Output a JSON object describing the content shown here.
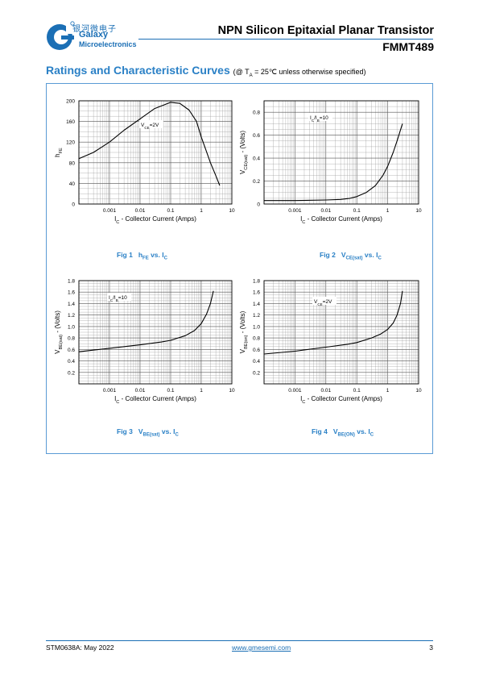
{
  "header": {
    "company_cn": "银河微电子",
    "company_en_1": "Galaxy",
    "company_en_2": "Microelectronics",
    "title": "NPN Silicon Epitaxial Planar Transistor",
    "part_number": "FMMT489"
  },
  "section": {
    "title": "Ratings and Characteristic Curves",
    "condition_prefix": "(@ T",
    "condition_sub": "A",
    "condition_suffix": " = 25℃ unless otherwise specified)"
  },
  "footer": {
    "doc_id": "STM0638A: May 2022",
    "website": "www.gmesemi.com",
    "page": "3"
  },
  "colors": {
    "brand_blue": "#1b6fb5",
    "caption_blue": "#2a80c6",
    "panel_border": "#5a9bd5"
  },
  "chart_data": [
    {
      "type": "line",
      "caption_fig": "Fig 1",
      "caption": [
        [
          "h",
          ""
        ],
        [
          "FE",
          "sub"
        ],
        [
          " vs. I",
          ""
        ],
        [
          "C",
          "sub"
        ]
      ],
      "xscale": "log",
      "xlim": [
        0.0001,
        10
      ],
      "x_ticks": [
        "0.001",
        "0.01",
        "0.1",
        "1",
        "10"
      ],
      "xlabel": [
        [
          "I",
          ""
        ],
        [
          "C",
          "sub"
        ],
        [
          " - Collector Current (Amps)",
          ""
        ]
      ],
      "ylabel": [
        [
          "h",
          ""
        ],
        [
          "FE",
          "sub"
        ]
      ],
      "ylim": [
        0,
        200
      ],
      "y_ticks": [
        "200",
        "160",
        "120",
        "80",
        "40",
        "0"
      ],
      "annotation": [
        [
          "V",
          ""
        ],
        [
          "CE",
          "sub"
        ],
        [
          "=2V",
          ""
        ]
      ],
      "series": [
        {
          "x": [
            0.0001,
            0.0003,
            0.001,
            0.003,
            0.01,
            0.03,
            0.1,
            0.2,
            0.4,
            0.7,
            1,
            2,
            3,
            4
          ],
          "y": [
            88,
            100,
            120,
            143,
            165,
            185,
            197,
            195,
            182,
            160,
            130,
            80,
            55,
            36
          ]
        }
      ]
    },
    {
      "type": "line",
      "caption_fig": "Fig 2",
      "caption": [
        [
          "V",
          ""
        ],
        [
          "CE(sat)",
          "sub"
        ],
        [
          " vs. I",
          ""
        ],
        [
          "C",
          "sub"
        ]
      ],
      "xscale": "log",
      "xlim": [
        0.0001,
        10
      ],
      "x_ticks": [
        "0.001",
        "0.01",
        "0.1",
        "1",
        "10"
      ],
      "xlabel": [
        [
          "I",
          ""
        ],
        [
          "C",
          "sub"
        ],
        [
          " - Collector Current (Amps)",
          ""
        ]
      ],
      "ylabel": [
        [
          "V",
          ""
        ],
        [
          "CE(sat)",
          "sub"
        ],
        [
          " - (Volts)",
          ""
        ]
      ],
      "ylim": [
        0,
        0.9
      ],
      "y_ticks": [
        "0.8",
        "0.6",
        "0.4",
        "0.2",
        "0"
      ],
      "annotation": [
        [
          "I",
          ""
        ],
        [
          "C",
          "sub"
        ],
        [
          "/I",
          ""
        ],
        [
          "B",
          "sub"
        ],
        [
          "=10",
          ""
        ]
      ],
      "series": [
        {
          "x": [
            0.0001,
            0.001,
            0.01,
            0.03,
            0.06,
            0.1,
            0.2,
            0.4,
            0.7,
            1,
            1.5,
            2,
            3
          ],
          "y": [
            0.03,
            0.03,
            0.035,
            0.04,
            0.05,
            0.065,
            0.1,
            0.16,
            0.25,
            0.33,
            0.45,
            0.55,
            0.7
          ]
        }
      ]
    },
    {
      "type": "line",
      "caption_fig": "Fig 3",
      "caption": [
        [
          "V",
          ""
        ],
        [
          "BE(sat)",
          "sub"
        ],
        [
          " vs. I",
          ""
        ],
        [
          "C",
          "sub"
        ]
      ],
      "xscale": "log",
      "xlim": [
        0.0001,
        10
      ],
      "x_ticks": [
        "0.001",
        "0.01",
        "0.1",
        "1",
        "10"
      ],
      "xlabel": [
        [
          "I",
          ""
        ],
        [
          "C",
          "sub"
        ],
        [
          " - Collector Current (Amps)",
          ""
        ]
      ],
      "ylabel": [
        [
          "V",
          ""
        ],
        [
          "BE(sat)",
          "sub"
        ],
        [
          " - (Volts)",
          ""
        ]
      ],
      "ylim": [
        0,
        1.8
      ],
      "y_ticks": [
        "1.8",
        "1.6",
        "1.4",
        "1.2",
        "1.0",
        "0.8",
        "0.6",
        "0.4",
        "0.2"
      ],
      "annotation": [
        [
          "I",
          ""
        ],
        [
          "C",
          "sub"
        ],
        [
          "/I",
          ""
        ],
        [
          "B",
          "sub"
        ],
        [
          "=10",
          ""
        ]
      ],
      "series": [
        {
          "x": [
            0.0001,
            0.001,
            0.01,
            0.05,
            0.1,
            0.3,
            0.6,
            1,
            1.5,
            2,
            2.5
          ],
          "y": [
            0.56,
            0.62,
            0.68,
            0.73,
            0.76,
            0.84,
            0.93,
            1.05,
            1.22,
            1.4,
            1.62
          ]
        }
      ]
    },
    {
      "type": "line",
      "caption_fig": "Fig 4",
      "caption": [
        [
          "V",
          ""
        ],
        [
          "BE(ON)",
          "sub"
        ],
        [
          " vs. I",
          ""
        ],
        [
          "C",
          "sub"
        ]
      ],
      "xscale": "log",
      "xlim": [
        0.0001,
        10
      ],
      "x_ticks": [
        "0.001",
        "0.01",
        "0.1",
        "1",
        "10"
      ],
      "xlabel": [
        [
          "I",
          ""
        ],
        [
          "C",
          "sub"
        ],
        [
          " - Collector Current (Amps)",
          ""
        ]
      ],
      "ylabel": [
        [
          "V",
          ""
        ],
        [
          "BE(on)",
          "sub"
        ],
        [
          " - (Volts)",
          ""
        ]
      ],
      "ylim": [
        0,
        1.8
      ],
      "y_ticks": [
        "1.8",
        "1.6",
        "1.4",
        "1.2",
        "1.0",
        "0.8",
        "0.6",
        "0.4",
        "0.2"
      ],
      "annotation": [
        [
          "V",
          ""
        ],
        [
          "CE",
          "sub"
        ],
        [
          "=2V",
          ""
        ]
      ],
      "series": [
        {
          "x": [
            0.0001,
            0.001,
            0.01,
            0.05,
            0.1,
            0.3,
            0.6,
            1,
            1.5,
            2,
            2.6,
            3
          ],
          "y": [
            0.52,
            0.57,
            0.64,
            0.69,
            0.72,
            0.8,
            0.87,
            0.95,
            1.06,
            1.2,
            1.4,
            1.62
          ]
        }
      ]
    }
  ]
}
